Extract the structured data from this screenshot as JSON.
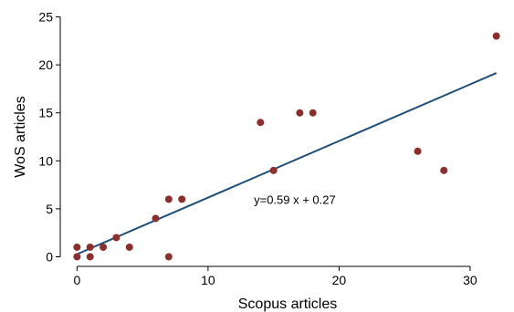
{
  "chart_data": {
    "type": "scatter",
    "xlabel": "Scopus articles",
    "ylabel": "WoS articles",
    "xlim": [
      -1,
      33
    ],
    "ylim": [
      -1,
      26
    ],
    "x_ticks": [
      0,
      10,
      20,
      30
    ],
    "y_ticks": [
      0,
      5,
      10,
      15,
      20,
      25
    ],
    "grid": false,
    "series": [
      {
        "values": [
          {
            "x": 0,
            "y": 0
          },
          {
            "x": 0,
            "y": 1
          },
          {
            "x": 1,
            "y": 0
          },
          {
            "x": 1,
            "y": 1
          },
          {
            "x": 2,
            "y": 1
          },
          {
            "x": 3,
            "y": 2
          },
          {
            "x": 4,
            "y": 1
          },
          {
            "x": 6,
            "y": 4
          },
          {
            "x": 7,
            "y": 0
          },
          {
            "x": 7,
            "y": 6
          },
          {
            "x": 8,
            "y": 6
          },
          {
            "x": 14,
            "y": 14
          },
          {
            "x": 15,
            "y": 9
          },
          {
            "x": 17,
            "y": 15
          },
          {
            "x": 18,
            "y": 15
          },
          {
            "x": 26,
            "y": 11
          },
          {
            "x": 28,
            "y": 9
          },
          {
            "x": 32,
            "y": 23
          }
        ]
      }
    ],
    "fit_line": {
      "slope": 0.59,
      "intercept": 0.27,
      "x_range": [
        0,
        32
      ]
    },
    "annotation": {
      "text": "y=0.59 x + 0.27",
      "x": 13.5,
      "y": 6
    },
    "colors": {
      "points": "#8b2e2e",
      "fit_line": "#1f4e79"
    }
  }
}
